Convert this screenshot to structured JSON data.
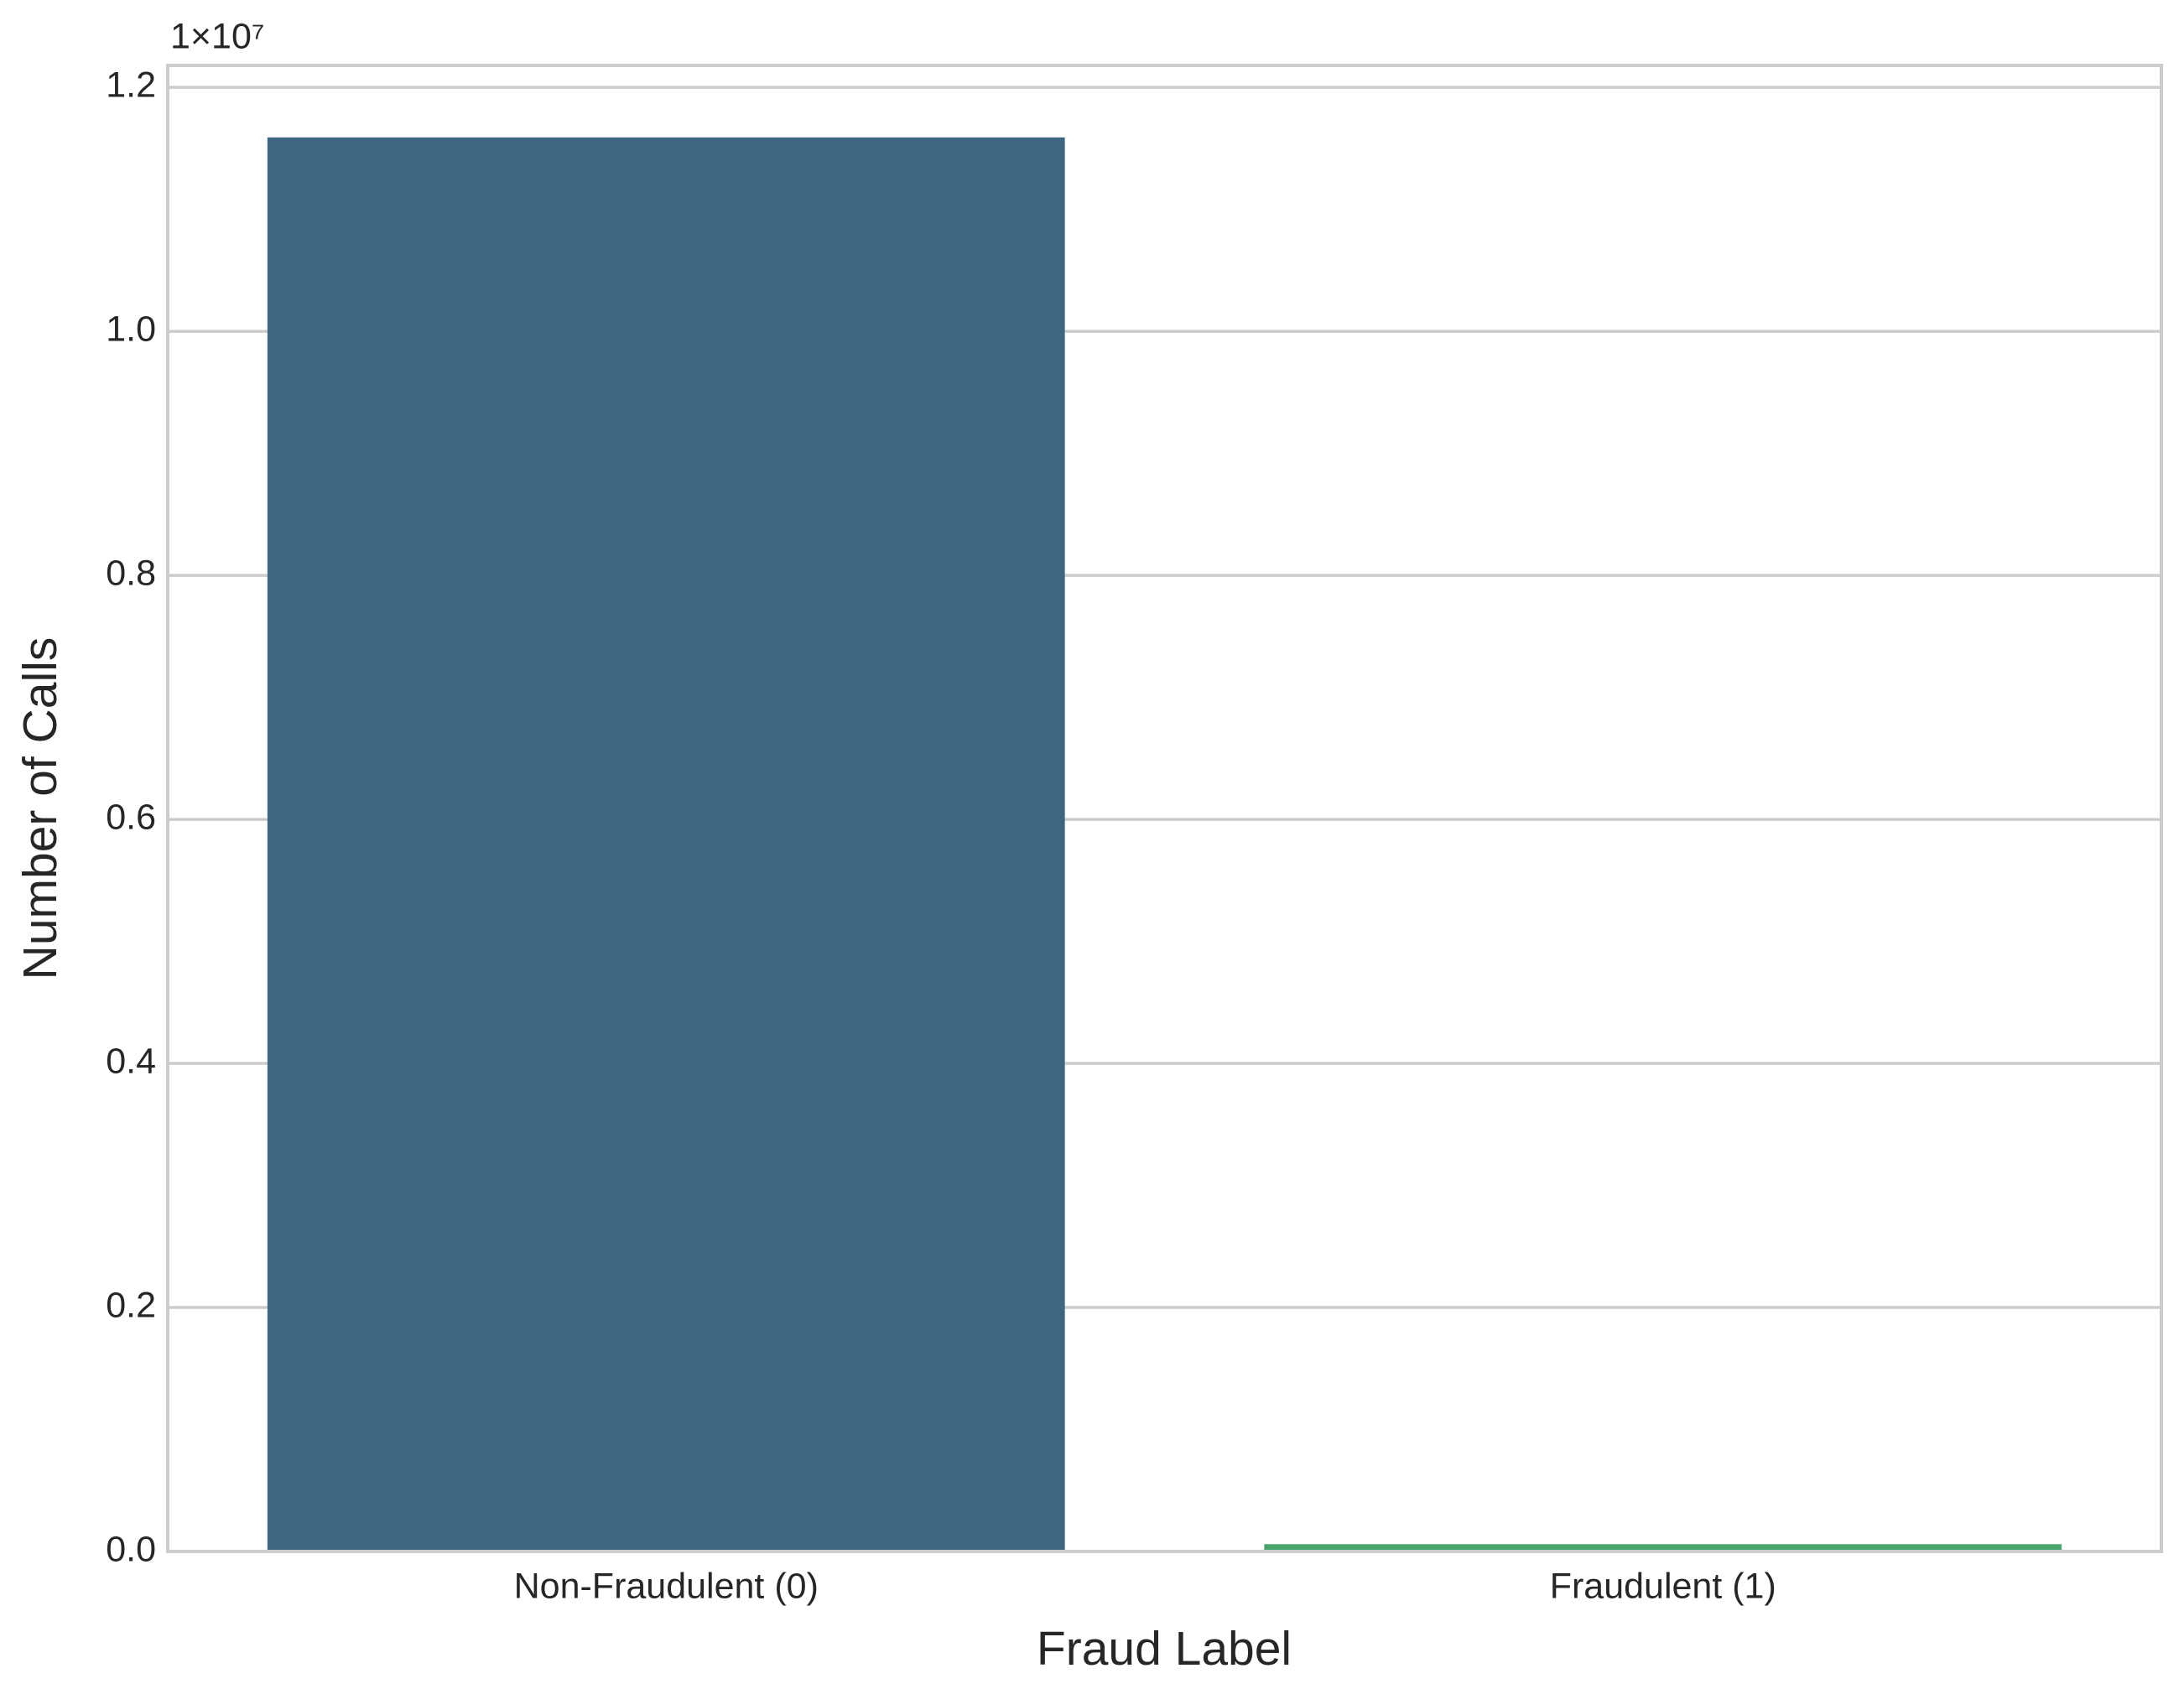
{
  "chart_data": {
    "type": "bar",
    "categories": [
      "Non-Fraudulent (0)",
      "Fraudulent (1)"
    ],
    "values": [
      11590000,
      60000
    ],
    "colors": [
      "#3f6681",
      "#48a56e"
    ],
    "xlabel": "Fraud Label",
    "ylabel": "Number of Calls",
    "y_offset_text": "1×10⁷",
    "ylim": [
      0,
      12180000
    ],
    "yticks": [
      {
        "value": 0,
        "label": "0.0"
      },
      {
        "value": 2000000,
        "label": "0.2"
      },
      {
        "value": 4000000,
        "label": "0.4"
      },
      {
        "value": 6000000,
        "label": "0.6"
      },
      {
        "value": 8000000,
        "label": "0.8"
      },
      {
        "value": 10000000,
        "label": "1.0"
      },
      {
        "value": 12000000,
        "label": "1.2"
      }
    ],
    "grid": true
  }
}
